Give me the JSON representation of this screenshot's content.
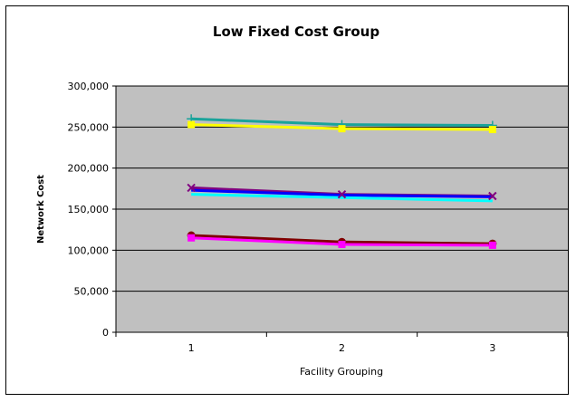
{
  "chart_data": {
    "type": "line",
    "title": "Low Fixed Cost Group",
    "xlabel": "Facility Grouping",
    "ylabel": "Network Cost",
    "categories": [
      "1",
      "2",
      "3"
    ],
    "ylim": [
      0,
      300000
    ],
    "ytick_values": [
      0,
      50000,
      100000,
      150000,
      200000,
      250000,
      300000
    ],
    "ytick_labels": [
      "0",
      "50,000",
      "100,000",
      "150,000",
      "200,000",
      "250,000",
      "300,000"
    ],
    "grid": true,
    "plot_background": "#c0c0c0",
    "series": [
      {
        "values": [
          260000,
          253000,
          252000
        ],
        "color": "#1aa39a",
        "marker": "plus"
      },
      {
        "values": [
          253000,
          248000,
          247000
        ],
        "color": "#ffff00",
        "marker": "square"
      },
      {
        "values": [
          176000,
          168000,
          166000
        ],
        "color": "#800080",
        "marker": "x"
      },
      {
        "values": [
          173000,
          167000,
          165000
        ],
        "color": "#0000ff",
        "marker": "none"
      },
      {
        "values": [
          168000,
          164000,
          160000
        ],
        "color": "#00ffff",
        "marker": "none"
      },
      {
        "values": [
          118000,
          110000,
          108000
        ],
        "color": "#800000",
        "marker": "circle"
      },
      {
        "values": [
          115000,
          107000,
          106000
        ],
        "color": "#ff00ff",
        "marker": "square"
      }
    ]
  }
}
